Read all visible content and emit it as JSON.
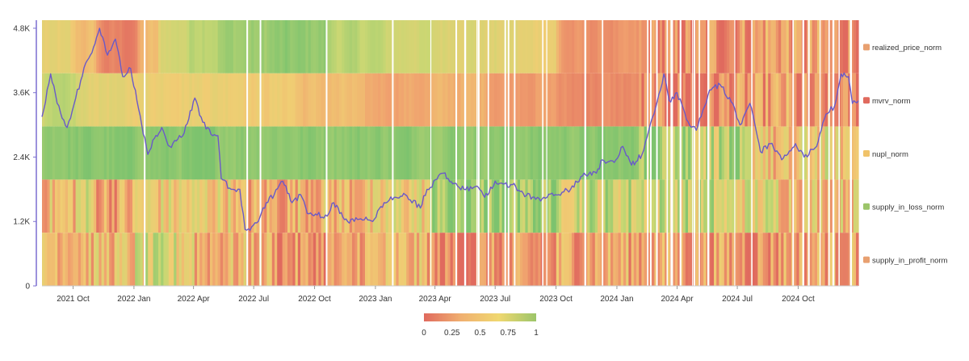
{
  "chart_data": {
    "type": "heatmap",
    "title": "",
    "xlabel": "",
    "ylabel": "",
    "x_range": [
      "2021-08-15",
      "2024-12-31"
    ],
    "x_tick_labels": [
      "2021 Oct",
      "2022 Jan",
      "2022 Apr",
      "2022 Jul",
      "2022 Oct",
      "2023 Jan",
      "2023 Apr",
      "2023 Jul",
      "2023 Oct",
      "2024 Jan",
      "2024 Apr",
      "2024 Jul",
      "2024 Oct"
    ],
    "x_tick_dates": [
      "2021-10-01",
      "2022-01-01",
      "2022-04-01",
      "2022-07-01",
      "2022-10-01",
      "2023-01-01",
      "2023-04-01",
      "2023-07-01",
      "2023-10-01",
      "2024-01-01",
      "2024-04-01",
      "2024-07-01",
      "2024-10-01"
    ],
    "y_tick_labels": [
      "0",
      "1.2K",
      "2.4K",
      "3.6K",
      "4.8K"
    ],
    "y_tick_values": [
      0,
      1200,
      2400,
      3600,
      4800
    ],
    "ylim": [
      0,
      4950
    ],
    "rows": [
      {
        "name": "realized_price_norm",
        "color": "#e8a070",
        "segments": [
          [
            "2021-08-15",
            0.55
          ],
          [
            "2021-09-25",
            0.4
          ],
          [
            "2021-11-05",
            0.1
          ],
          [
            "2022-01-05",
            0.4
          ],
          [
            "2022-02-05",
            0.7
          ],
          [
            "2022-03-20",
            0.82
          ],
          [
            "2022-05-05",
            0.88
          ],
          [
            "2022-07-20",
            0.92
          ],
          [
            "2022-10-15",
            0.78
          ],
          [
            "2023-01-05",
            0.7
          ],
          [
            "2023-03-20",
            0.65
          ],
          [
            "2023-06-01",
            0.6
          ],
          [
            "2023-08-01",
            0.55
          ],
          [
            "2023-10-01",
            0.18
          ],
          [
            "2024-02-01",
            0.12
          ],
          [
            "2024-05-15",
            0.2
          ],
          [
            "2024-08-01",
            0.3
          ],
          [
            "2024-09-15",
            0.18
          ]
        ]
      },
      {
        "name": "mvrv_norm",
        "color": "#e06a5e",
        "segments": [
          [
            "2021-08-15",
            0.75
          ],
          [
            "2021-10-01",
            0.6
          ],
          [
            "2021-12-01",
            0.55
          ],
          [
            "2022-03-20",
            0.55
          ],
          [
            "2022-06-15",
            0.5
          ],
          [
            "2022-09-01",
            0.4
          ],
          [
            "2022-12-01",
            0.3
          ],
          [
            "2023-03-20",
            0.35
          ],
          [
            "2023-06-15",
            0.25
          ],
          [
            "2023-10-01",
            0.15
          ],
          [
            "2024-02-01",
            0.08
          ],
          [
            "2024-06-01",
            0.18
          ],
          [
            "2024-08-15",
            0.25
          ],
          [
            "2024-09-20",
            0.1
          ]
        ]
      },
      {
        "name": "nupl_norm",
        "color": "#f0c36a",
        "segments": [
          [
            "2021-08-15",
            0.95
          ],
          [
            "2024-03-10",
            0.88
          ],
          [
            "2024-04-20",
            0.75
          ],
          [
            "2024-07-01",
            0.6
          ],
          [
            "2024-08-15",
            0.35
          ],
          [
            "2024-10-01",
            0.55
          ],
          [
            "2024-11-15",
            0.48
          ]
        ]
      },
      {
        "name": "supply_in_loss_norm",
        "color": "#9cc56a",
        "segments": [
          [
            "2021-08-15",
            0.4
          ],
          [
            "2021-10-01",
            0.6
          ],
          [
            "2021-11-01",
            0.3
          ],
          [
            "2022-01-01",
            0.5
          ],
          [
            "2022-06-01",
            0.3
          ],
          [
            "2022-09-01",
            0.38
          ],
          [
            "2023-01-10",
            0.55
          ],
          [
            "2023-03-25",
            0.9
          ],
          [
            "2023-10-01",
            0.72
          ],
          [
            "2024-02-15",
            0.7
          ],
          [
            "2024-06-01",
            0.6
          ],
          [
            "2024-09-01",
            0.45
          ]
        ]
      },
      {
        "name": "supply_in_profit_norm",
        "color": "#e8a070",
        "segments": [
          [
            "2021-08-15",
            0.45
          ],
          [
            "2021-10-01",
            0.4
          ],
          [
            "2022-01-01",
            0.6
          ],
          [
            "2022-04-01",
            0.35
          ],
          [
            "2022-08-01",
            0.2
          ],
          [
            "2022-12-01",
            0.35
          ],
          [
            "2023-03-25",
            0.1
          ],
          [
            "2023-06-01",
            0.15
          ],
          [
            "2023-10-01",
            0.3
          ],
          [
            "2024-03-01",
            0.25
          ],
          [
            "2024-07-01",
            0.22
          ],
          [
            "2024-09-01",
            0.3
          ]
        ]
      }
    ],
    "line_series": {
      "name": "",
      "color": "#6a5ac8",
      "points": [
        [
          "2021-08-15",
          3150
        ],
        [
          "2021-08-28",
          3950
        ],
        [
          "2021-09-07",
          3400
        ],
        [
          "2021-09-22",
          2950
        ],
        [
          "2021-10-05",
          3500
        ],
        [
          "2021-10-20",
          4150
        ],
        [
          "2021-11-01",
          4450
        ],
        [
          "2021-11-10",
          4800
        ],
        [
          "2021-11-22",
          4300
        ],
        [
          "2021-12-04",
          4600
        ],
        [
          "2021-12-15",
          3900
        ],
        [
          "2021-12-27",
          4050
        ],
        [
          "2022-01-08",
          3300
        ],
        [
          "2022-01-22",
          2450
        ],
        [
          "2022-02-01",
          2750
        ],
        [
          "2022-02-12",
          2950
        ],
        [
          "2022-02-24",
          2600
        ],
        [
          "2022-03-06",
          2700
        ],
        [
          "2022-03-18",
          2850
        ],
        [
          "2022-04-03",
          3500
        ],
        [
          "2022-04-15",
          3050
        ],
        [
          "2022-04-30",
          2800
        ],
        [
          "2022-05-08",
          2800
        ],
        [
          "2022-05-13",
          2000
        ],
        [
          "2022-05-28",
          1800
        ],
        [
          "2022-06-10",
          1800
        ],
        [
          "2022-06-18",
          1050
        ],
        [
          "2022-06-28",
          1100
        ],
        [
          "2022-07-08",
          1200
        ],
        [
          "2022-07-20",
          1550
        ],
        [
          "2022-08-01",
          1700
        ],
        [
          "2022-08-14",
          1950
        ],
        [
          "2022-08-28",
          1550
        ],
        [
          "2022-09-10",
          1700
        ],
        [
          "2022-09-20",
          1350
        ],
        [
          "2022-10-05",
          1320
        ],
        [
          "2022-10-20",
          1300
        ],
        [
          "2022-10-30",
          1550
        ],
        [
          "2022-11-08",
          1350
        ],
        [
          "2022-11-20",
          1200
        ],
        [
          "2022-12-10",
          1250
        ],
        [
          "2022-12-28",
          1200
        ],
        [
          "2023-01-14",
          1550
        ],
        [
          "2023-02-01",
          1650
        ],
        [
          "2023-02-15",
          1700
        ],
        [
          "2023-03-10",
          1450
        ],
        [
          "2023-03-20",
          1800
        ],
        [
          "2023-04-14",
          2100
        ],
        [
          "2023-04-28",
          1900
        ],
        [
          "2023-05-15",
          1800
        ],
        [
          "2023-06-01",
          1850
        ],
        [
          "2023-06-15",
          1650
        ],
        [
          "2023-07-01",
          1950
        ],
        [
          "2023-07-15",
          1900
        ],
        [
          "2023-08-01",
          1850
        ],
        [
          "2023-08-17",
          1680
        ],
        [
          "2023-09-10",
          1620
        ],
        [
          "2023-09-30",
          1700
        ],
        [
          "2023-10-23",
          1800
        ],
        [
          "2023-11-10",
          2050
        ],
        [
          "2023-12-01",
          2100
        ],
        [
          "2023-12-10",
          2350
        ],
        [
          "2023-12-28",
          2300
        ],
        [
          "2024-01-10",
          2600
        ],
        [
          "2024-01-23",
          2250
        ],
        [
          "2024-02-08",
          2450
        ],
        [
          "2024-02-26",
          3200
        ],
        [
          "2024-03-12",
          3950
        ],
        [
          "2024-03-20",
          3450
        ],
        [
          "2024-04-01",
          3600
        ],
        [
          "2024-04-15",
          3100
        ],
        [
          "2024-04-30",
          2900
        ],
        [
          "2024-05-20",
          3650
        ],
        [
          "2024-06-05",
          3750
        ],
        [
          "2024-06-24",
          3400
        ],
        [
          "2024-07-05",
          3000
        ],
        [
          "2024-07-20",
          3400
        ],
        [
          "2024-08-05",
          2500
        ],
        [
          "2024-08-20",
          2650
        ],
        [
          "2024-09-06",
          2350
        ],
        [
          "2024-09-27",
          2650
        ],
        [
          "2024-10-10",
          2400
        ],
        [
          "2024-10-29",
          2600
        ],
        [
          "2024-11-12",
          3200
        ],
        [
          "2024-11-25",
          3350
        ],
        [
          "2024-12-05",
          3950
        ],
        [
          "2024-12-16",
          3900
        ],
        [
          "2024-12-22",
          3400
        ],
        [
          "2024-12-31",
          3450
        ]
      ]
    },
    "colorbar": {
      "tick_labels": [
        "0",
        "0.25",
        "0.5",
        "0.75",
        "1"
      ],
      "tick_values": [
        0,
        0.25,
        0.5,
        0.75,
        1
      ],
      "colors": [
        "#e06a5e",
        "#f0b070",
        "#f0d870",
        "#9cc56a"
      ]
    },
    "grid": false,
    "legend_position": "right"
  }
}
